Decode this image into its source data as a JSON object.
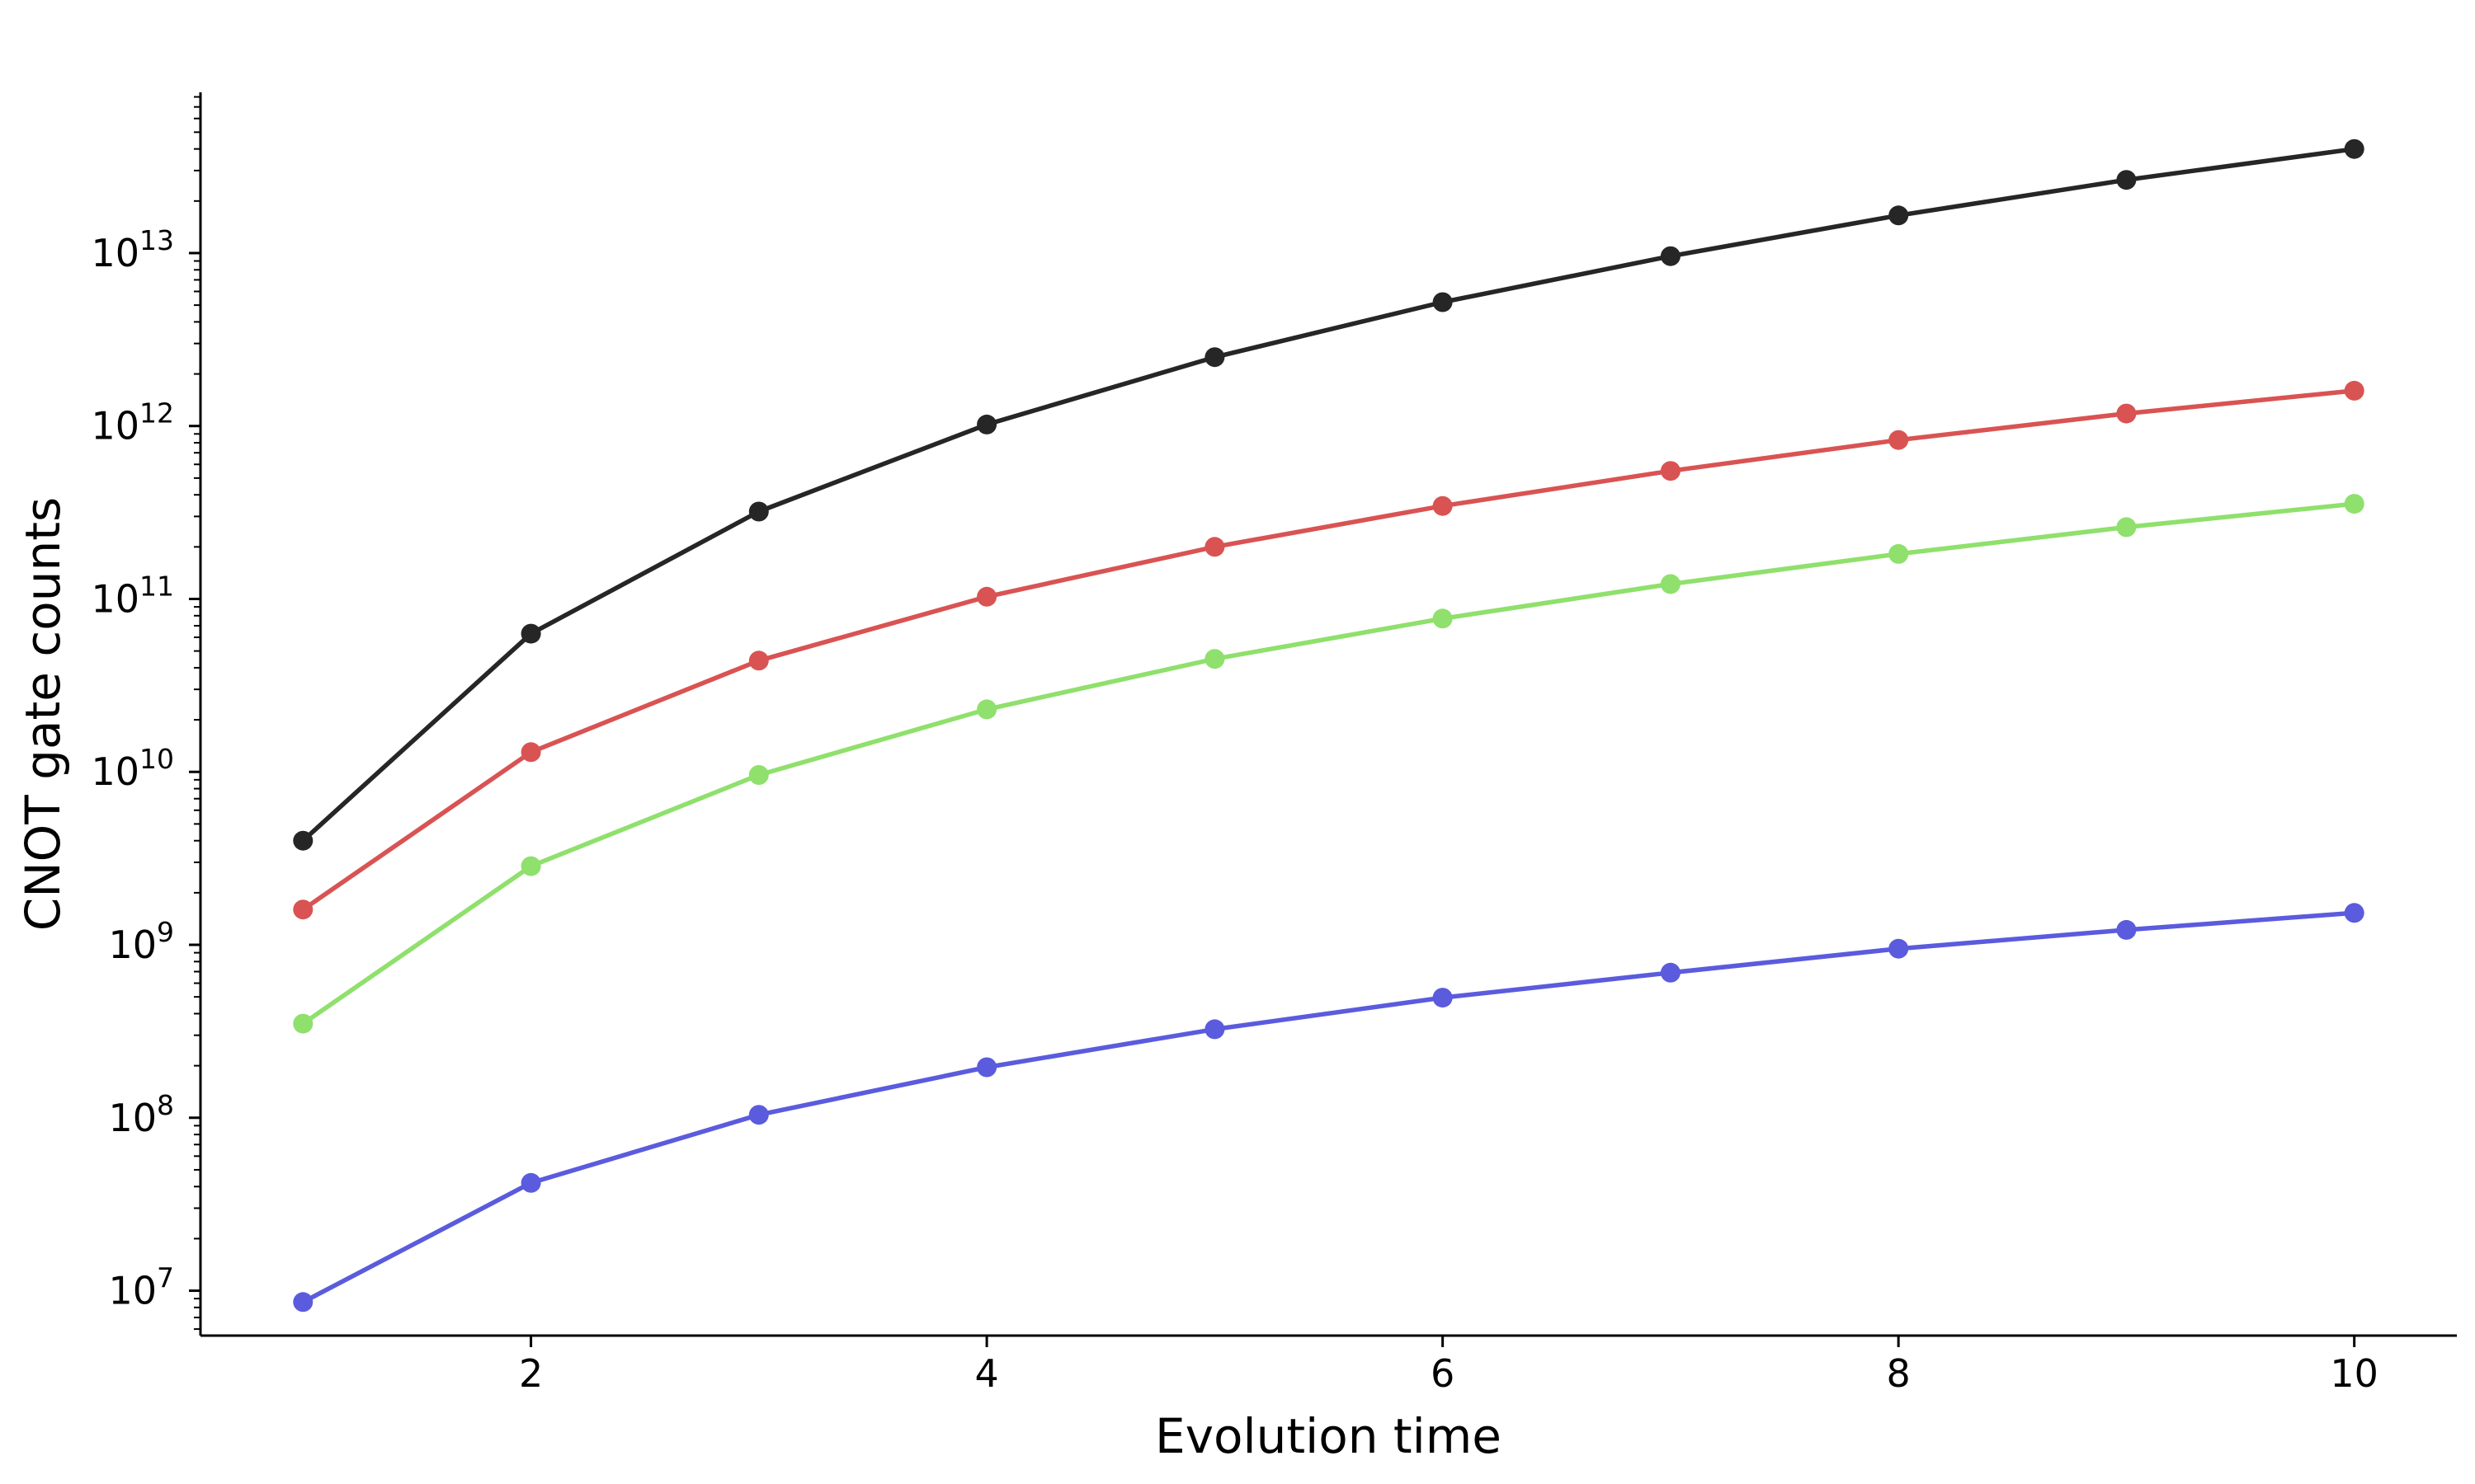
{
  "chart_data": {
    "type": "line",
    "title": "",
    "xlabel": "Evolution time",
    "ylabel": "CNOT gate counts",
    "x": [
      1,
      2,
      3,
      4,
      5,
      6,
      7,
      8,
      9,
      10
    ],
    "xlim": [
      0.55,
      10.45
    ],
    "ylim": [
      5500000.0,
      85000000000000.0
    ],
    "yscale": "log",
    "x_ticks": [
      2,
      4,
      6,
      8,
      10
    ],
    "x_tick_labels": [
      "2",
      "4",
      "6",
      "8",
      "10"
    ],
    "y_ticks": [
      10000000.0,
      100000000.0,
      1000000000.0,
      10000000000.0,
      100000000000.0,
      1000000000000.0,
      10000000000000.0
    ],
    "y_tick_labels": [
      {
        "base": "10",
        "exp": "7"
      },
      {
        "base": "10",
        "exp": "8"
      },
      {
        "base": "10",
        "exp": "9"
      },
      {
        "base": "10",
        "exp": "10"
      },
      {
        "base": "10",
        "exp": "11"
      },
      {
        "base": "10",
        "exp": "12"
      },
      {
        "base": "10",
        "exp": "13"
      }
    ],
    "grid": false,
    "legend": "none",
    "series": [
      {
        "color": "#262626",
        "values": [
          4000000000.0,
          63000000000.0,
          320000000000.0,
          1020000000000.0,
          2500000000000.0,
          5200000000000.0,
          9600000000000.0,
          16500000000000.0,
          26500000000000.0,
          40000000000000.0
        ]
      },
      {
        "color": "#d95353",
        "values": [
          1600000000.0,
          13000000000.0,
          44000000000.0,
          103000000000.0,
          200000000000.0,
          345000000000.0,
          550000000000.0,
          830000000000.0,
          1180000000000.0,
          1600000000000.0
        ]
      },
      {
        "color": "#8fe06c",
        "values": [
          350000000.0,
          2850000000.0,
          9600000000.0,
          23000000000.0,
          45000000000.0,
          77000000000.0,
          122000000000.0,
          182000000000.0,
          260000000000.0,
          355000000000.0
        ]
      },
      {
        "color": "#5b5bde",
        "values": [
          8600000.0,
          42000000.0,
          104000000.0,
          196000000.0,
          325000000.0,
          495000000.0,
          690000000.0,
          950000000.0,
          1220000000.0,
          1530000000.0
        ]
      }
    ]
  }
}
